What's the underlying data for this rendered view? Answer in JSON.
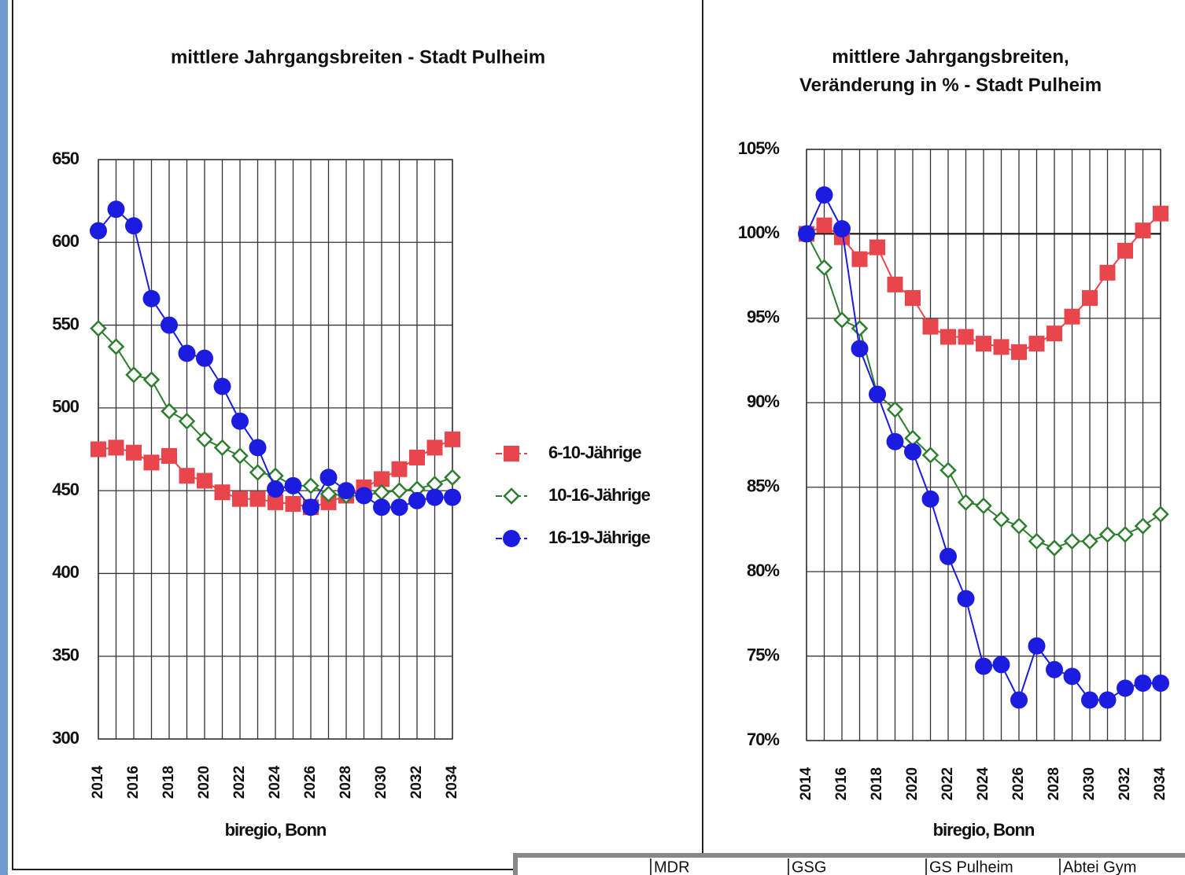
{
  "chart_data": [
    {
      "type": "line",
      "title": "mittlere Jahrgangsbreiten - Stadt Pulheim",
      "source": "biregio, Bonn",
      "x": [
        2014,
        2015,
        2016,
        2017,
        2018,
        2019,
        2020,
        2021,
        2022,
        2023,
        2024,
        2025,
        2026,
        2027,
        2028,
        2029,
        2030,
        2031,
        2032,
        2033,
        2034
      ],
      "xlim": [
        2014,
        2034
      ],
      "xticks": [
        2014,
        2016,
        2018,
        2020,
        2022,
        2024,
        2026,
        2028,
        2030,
        2032,
        2034
      ],
      "ylim": [
        300,
        650
      ],
      "yticks": [
        300,
        350,
        400,
        450,
        500,
        550,
        600,
        650
      ],
      "grid": true,
      "legend": "right",
      "series": [
        {
          "name": "6-10-Jährige",
          "color": "#e8454d",
          "marker": "square",
          "values": [
            475,
            476,
            473,
            467,
            471,
            459,
            456,
            449,
            445,
            445,
            443,
            442,
            440,
            443,
            447,
            452,
            457,
            463,
            470,
            476,
            481
          ]
        },
        {
          "name": "10-16-Jährige",
          "color": "#2f7d2f",
          "marker": "diamond",
          "values": [
            548,
            537,
            520,
            517,
            498,
            492,
            481,
            476,
            471,
            461,
            459,
            453,
            453,
            448,
            447,
            447,
            449,
            450,
            451,
            454,
            458
          ]
        },
        {
          "name": "16-19-Jährige",
          "color": "#1c1ce0",
          "marker": "circle",
          "values": [
            607,
            620,
            610,
            566,
            550,
            533,
            530,
            513,
            492,
            476,
            451,
            453,
            440,
            458,
            450,
            447,
            440,
            440,
            444,
            446,
            446
          ]
        }
      ]
    },
    {
      "type": "line",
      "title": "mittlere Jahrgangsbreiten,\nVeränderung in % - Stadt Pulheim",
      "source": "biregio, Bonn",
      "x": [
        2014,
        2015,
        2016,
        2017,
        2018,
        2019,
        2020,
        2021,
        2022,
        2023,
        2024,
        2025,
        2026,
        2027,
        2028,
        2029,
        2030,
        2031,
        2032,
        2033,
        2034
      ],
      "xlim": [
        2014,
        2034
      ],
      "xticks": [
        2014,
        2016,
        2018,
        2020,
        2022,
        2024,
        2026,
        2028,
        2030,
        2032,
        2034
      ],
      "ylim": [
        70,
        105
      ],
      "yticks": [
        {
          "value": 70,
          "label": "70%"
        },
        {
          "value": 75,
          "label": "75%"
        },
        {
          "value": 80,
          "label": "80%"
        },
        {
          "value": 85,
          "label": "85%"
        },
        {
          "value": 90,
          "label": "90%"
        },
        {
          "value": 95,
          "label": "95%"
        },
        {
          "value": 100,
          "label": "100%"
        },
        {
          "value": 105,
          "label": "105%"
        }
      ],
      "grid": true,
      "reference_line": 100,
      "series": [
        {
          "color": "#e8454d",
          "marker": "square",
          "values": [
            100,
            100.5,
            99.8,
            98.5,
            99.2,
            97,
            96.2,
            94.5,
            93.9,
            93.9,
            93.5,
            93.3,
            93,
            93.5,
            94.1,
            95.1,
            96.2,
            97.7,
            99,
            100.2,
            101.2
          ]
        },
        {
          "color": "#2f7d2f",
          "marker": "diamond",
          "values": [
            100,
            98,
            94.9,
            94.4,
            90.5,
            89.6,
            87.9,
            86.9,
            86,
            84.1,
            83.9,
            83.1,
            82.7,
            81.8,
            81.4,
            81.8,
            81.8,
            82.2,
            82.2,
            82.7,
            83.4
          ]
        },
        {
          "color": "#1c1ce0",
          "marker": "circle",
          "values": [
            100,
            102.3,
            100.3,
            93.2,
            90.5,
            87.7,
            87.1,
            84.3,
            80.9,
            78.4,
            74.4,
            74.5,
            72.4,
            75.6,
            74.2,
            73.8,
            72.4,
            72.4,
            73.1,
            73.4,
            73.4
          ]
        }
      ]
    }
  ],
  "table_headers": [
    "MDR",
    "GSG",
    "GS Pulheim",
    "Abtei Gym"
  ]
}
